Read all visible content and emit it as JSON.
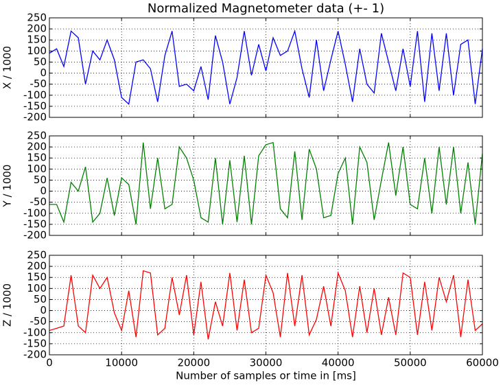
{
  "chart_data": [
    {
      "type": "line",
      "title": "Normalized Magnetometer data (+- 1)",
      "y_label": "X / 1000",
      "x": [
        0,
        1000,
        2000,
        3000,
        4000,
        5000,
        6000,
        7000,
        8000,
        9000,
        10000,
        11000,
        12000,
        13000,
        14000,
        15000,
        16000,
        17000,
        18000,
        19000,
        20000,
        21000,
        22000,
        23000,
        24000,
        25000,
        26000,
        27000,
        28000,
        29000,
        30000,
        31000,
        32000,
        33000,
        34000,
        35000,
        36000,
        37000,
        38000,
        39000,
        40000,
        41000,
        42000,
        43000,
        44000,
        45000,
        46000,
        47000,
        48000,
        49000,
        50000,
        51000,
        52000,
        53000,
        54000,
        55000,
        56000,
        57000,
        58000,
        59000,
        60000
      ],
      "series": [
        {
          "name": "X",
          "color": "#0000ff",
          "values": [
            90,
            110,
            30,
            190,
            160,
            -50,
            100,
            60,
            150,
            60,
            -110,
            -140,
            50,
            60,
            20,
            -130,
            80,
            190,
            -60,
            -50,
            -80,
            30,
            -120,
            170,
            50,
            -140,
            -20,
            190,
            -10,
            130,
            10,
            160,
            80,
            100,
            190,
            20,
            -110,
            150,
            -80,
            60,
            190,
            40,
            -130,
            110,
            -50,
            -90,
            180,
            50,
            -80,
            110,
            -60,
            190,
            -130,
            180,
            -80,
            180,
            -100,
            130,
            150,
            -140,
            110
          ]
        }
      ],
      "xlim": [
        0,
        60000
      ],
      "xticks": [
        0,
        10000,
        20000,
        30000,
        40000,
        50000,
        60000
      ],
      "ylim": [
        -200,
        250
      ],
      "yticks": [
        -200,
        -150,
        -100,
        -50,
        0,
        50,
        100,
        150,
        200,
        250
      ],
      "grid": true
    },
    {
      "type": "line",
      "y_label": "Y / 1000",
      "x": [
        0,
        1000,
        2000,
        3000,
        4000,
        5000,
        6000,
        7000,
        8000,
        9000,
        10000,
        11000,
        12000,
        13000,
        14000,
        15000,
        16000,
        17000,
        18000,
        19000,
        20000,
        21000,
        22000,
        23000,
        24000,
        25000,
        26000,
        27000,
        28000,
        29000,
        30000,
        31000,
        32000,
        33000,
        34000,
        35000,
        36000,
        37000,
        38000,
        39000,
        40000,
        41000,
        42000,
        43000,
        44000,
        45000,
        46000,
        47000,
        48000,
        49000,
        50000,
        51000,
        52000,
        53000,
        54000,
        55000,
        56000,
        57000,
        58000,
        59000,
        60000
      ],
      "series": [
        {
          "name": "Y",
          "color": "#008000",
          "values": [
            -60,
            -60,
            -140,
            40,
            0,
            110,
            -140,
            -100,
            60,
            -110,
            60,
            30,
            -150,
            220,
            -80,
            150,
            -80,
            -60,
            200,
            150,
            50,
            -120,
            -140,
            150,
            -150,
            140,
            -140,
            160,
            -150,
            160,
            210,
            220,
            -80,
            -120,
            180,
            -130,
            190,
            100,
            -120,
            -110,
            80,
            150,
            -150,
            200,
            130,
            -130,
            50,
            220,
            -20,
            200,
            -60,
            -80,
            150,
            -100,
            200,
            -60,
            200,
            -100,
            130,
            -150,
            170
          ]
        }
      ],
      "xlim": [
        0,
        60000
      ],
      "xticks": [
        0,
        10000,
        20000,
        30000,
        40000,
        50000,
        60000
      ],
      "ylim": [
        -200,
        250
      ],
      "yticks": [
        -200,
        -150,
        -100,
        -50,
        0,
        50,
        100,
        150,
        200,
        250
      ],
      "grid": true
    },
    {
      "type": "line",
      "y_label": "Z / 1000",
      "x_label": "Number of samples or time in [ms]",
      "x": [
        0,
        1000,
        2000,
        3000,
        4000,
        5000,
        6000,
        7000,
        8000,
        9000,
        10000,
        11000,
        12000,
        13000,
        14000,
        15000,
        16000,
        17000,
        18000,
        19000,
        20000,
        21000,
        22000,
        23000,
        24000,
        25000,
        26000,
        27000,
        28000,
        29000,
        30000,
        31000,
        32000,
        33000,
        34000,
        35000,
        36000,
        37000,
        38000,
        39000,
        40000,
        41000,
        42000,
        43000,
        44000,
        45000,
        46000,
        47000,
        48000,
        49000,
        50000,
        51000,
        52000,
        53000,
        54000,
        55000,
        56000,
        57000,
        58000,
        59000,
        60000
      ],
      "series": [
        {
          "name": "Z",
          "color": "#ff0000",
          "values": [
            -90,
            -80,
            -70,
            160,
            -70,
            -100,
            160,
            100,
            150,
            -10,
            -90,
            90,
            -120,
            180,
            170,
            -110,
            -80,
            150,
            -20,
            160,
            -110,
            130,
            -130,
            40,
            -70,
            170,
            -90,
            140,
            -100,
            -80,
            160,
            80,
            -120,
            170,
            -70,
            160,
            -110,
            -40,
            110,
            -70,
            170,
            90,
            -120,
            110,
            -100,
            100,
            -110,
            60,
            -110,
            170,
            150,
            -110,
            130,
            -90,
            150,
            40,
            160,
            -120,
            140,
            -90,
            -60
          ]
        }
      ],
      "xlim": [
        0,
        60000
      ],
      "xticks": [
        0,
        10000,
        20000,
        30000,
        40000,
        50000,
        60000
      ],
      "ylim": [
        -200,
        250
      ],
      "yticks": [
        -200,
        -150,
        -100,
        -50,
        0,
        50,
        100,
        150,
        200,
        250
      ],
      "grid": true
    }
  ]
}
